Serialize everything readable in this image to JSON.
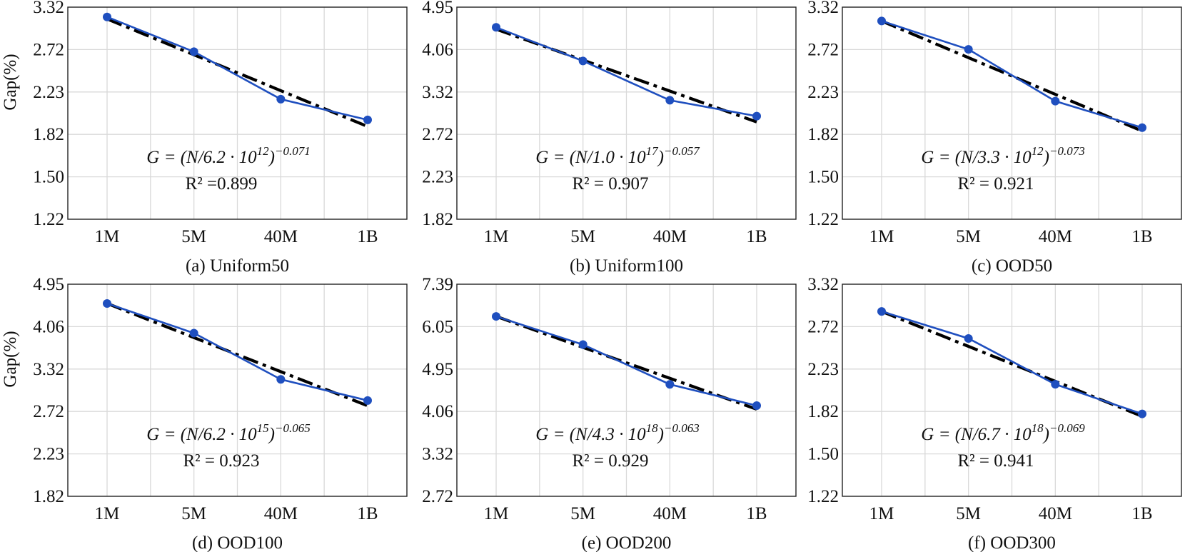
{
  "y_axis_label": "Gap(%)",
  "chart_data": [
    {
      "type": "line",
      "caption": "(a) Uniform50",
      "categories": [
        "1M",
        "5M",
        "40M",
        "1B"
      ],
      "yticks": [
        "3.32",
        "2.72",
        "2.23",
        "1.82",
        "1.50",
        "1.22"
      ],
      "ylim": [
        1.22,
        3.32
      ],
      "y_scale": "log",
      "series": [
        {
          "name": "Gap",
          "values": [
            3.17,
            2.69,
            2.15,
            1.95
          ]
        }
      ],
      "fit": {
        "name": "power-law fit",
        "start": 3.14,
        "end": 1.89
      },
      "equation": {
        "prefix": "G = (N/6.2 · 10",
        "exp": "12",
        "suffix": ")",
        "power": "−0.071"
      },
      "r2": "R² =0.899"
    },
    {
      "type": "line",
      "caption": "(b) Uniform100",
      "categories": [
        "1M",
        "5M",
        "40M",
        "1B"
      ],
      "yticks": [
        "4.95",
        "4.06",
        "3.32",
        "2.72",
        "2.23",
        "1.82"
      ],
      "ylim": [
        1.82,
        4.95
      ],
      "y_scale": "log",
      "series": [
        {
          "name": "Gap",
          "values": [
            4.5,
            3.84,
            3.19,
            2.96
          ]
        }
      ],
      "fit": {
        "name": "power-law fit",
        "start": 4.46,
        "end": 2.88
      },
      "equation": {
        "prefix": "G = (N/1.0 · 10",
        "exp": "17",
        "suffix": ")",
        "power": "−0.057"
      },
      "r2": "R² = 0.907"
    },
    {
      "type": "line",
      "caption": "(c) OOD50",
      "categories": [
        "1M",
        "5M",
        "40M",
        "1B"
      ],
      "yticks": [
        "3.32",
        "2.72",
        "2.23",
        "1.82",
        "1.50",
        "1.22"
      ],
      "ylim": [
        1.22,
        3.32
      ],
      "y_scale": "log",
      "series": [
        {
          "name": "Gap",
          "values": [
            3.11,
            2.72,
            2.13,
            1.88
          ]
        }
      ],
      "fit": {
        "name": "power-law fit",
        "start": 3.11,
        "end": 1.85
      },
      "equation": {
        "prefix": "G = (N/3.3 · 10",
        "exp": "12",
        "suffix": ")",
        "power": "−0.073"
      },
      "r2": "R² = 0.921"
    },
    {
      "type": "line",
      "caption": "(d) OOD100",
      "categories": [
        "1M",
        "5M",
        "40M",
        "1B"
      ],
      "yticks": [
        "4.95",
        "4.06",
        "3.32",
        "2.72",
        "2.23",
        "1.82"
      ],
      "ylim": [
        1.82,
        4.95
      ],
      "y_scale": "log",
      "series": [
        {
          "name": "Gap",
          "values": [
            4.52,
            3.93,
            3.16,
            2.86
          ]
        }
      ],
      "fit": {
        "name": "power-law fit",
        "start": 4.52,
        "end": 2.79
      },
      "equation": {
        "prefix": "G = (N/6.2 · 10",
        "exp": "15",
        "suffix": ")",
        "power": "−0.065"
      },
      "r2": "R² = 0.923"
    },
    {
      "type": "line",
      "caption": "(e) OOD200",
      "categories": [
        "1M",
        "5M",
        "40M",
        "1B"
      ],
      "yticks": [
        "7.39",
        "6.05",
        "4.95",
        "4.06",
        "3.32",
        "2.72"
      ],
      "ylim": [
        2.72,
        7.39
      ],
      "y_scale": "log",
      "series": [
        {
          "name": "Gap",
          "values": [
            6.35,
            5.56,
            4.61,
            4.17
          ]
        }
      ],
      "fit": {
        "name": "power-law fit",
        "start": 6.35,
        "end": 4.1
      },
      "equation": {
        "prefix": "G = (N/4.3 · 10",
        "exp": "18",
        "suffix": ")",
        "power": "−0.063"
      },
      "r2": "R² = 0.929"
    },
    {
      "type": "line",
      "caption": "(f) OOD300",
      "categories": [
        "1M",
        "5M",
        "40M",
        "1B"
      ],
      "yticks": [
        "3.32",
        "2.72",
        "2.23",
        "1.82",
        "1.50",
        "1.22"
      ],
      "ylim": [
        1.22,
        3.32
      ],
      "y_scale": "log",
      "series": [
        {
          "name": "Gap",
          "values": [
            2.92,
            2.57,
            2.07,
            1.8
          ]
        }
      ],
      "fit": {
        "name": "power-law fit",
        "start": 2.92,
        "end": 1.78
      },
      "equation": {
        "prefix": "G = (N/6.7 · 10",
        "exp": "18",
        "suffix": ")",
        "power": "−0.069"
      },
      "r2": "R² = 0.941"
    }
  ]
}
